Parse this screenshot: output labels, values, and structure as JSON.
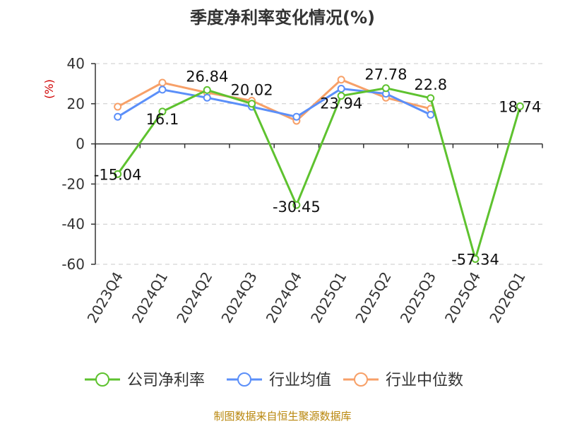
{
  "chart_data": {
    "type": "line",
    "title": "季度净利率变化情况(%)",
    "ylabel": "(%)",
    "xlabel": "",
    "categories": [
      "2023Q4",
      "2024Q1",
      "2024Q2",
      "2024Q3",
      "2024Q4",
      "2025Q1",
      "2025Q2",
      "2025Q3",
      "2025Q4",
      "2026Q1"
    ],
    "ylim": [
      -60,
      40
    ],
    "yticks": [
      40,
      20,
      0,
      -20,
      -40,
      -60
    ],
    "grid": true,
    "legend_position": "bottom",
    "series": [
      {
        "name": "公司净利率",
        "color": "#5ec22f",
        "values": [
          -15.04,
          16.1,
          26.84,
          20.02,
          -30.45,
          23.94,
          27.78,
          22.8,
          -57.34,
          18.74
        ],
        "labels": [
          "-15.04",
          "16.1",
          "26.84",
          "20.02",
          "-30.45",
          "23.94",
          "27.78",
          "22.8",
          "-57.34",
          "18.74"
        ]
      },
      {
        "name": "行业均值",
        "color": "#5b8ff9",
        "values": [
          13.5,
          27.0,
          23.0,
          18.5,
          13.5,
          27.5,
          25.0,
          14.5,
          null,
          null
        ]
      },
      {
        "name": "行业中位数",
        "color": "#f7a068",
        "values": [
          18.5,
          30.5,
          25.5,
          21.5,
          11.5,
          32.0,
          23.0,
          17.5,
          null,
          null
        ]
      }
    ],
    "source": "制图数据来自恒生聚源数据库"
  }
}
